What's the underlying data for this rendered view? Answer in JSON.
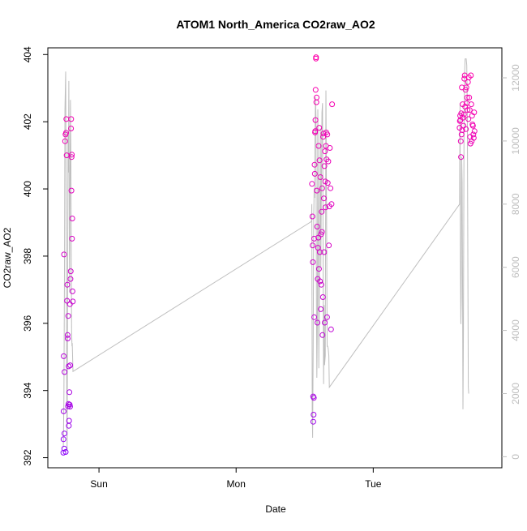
{
  "chart_data": {
    "type": "scatter",
    "title": "ATOM1 North_America CO2raw_AO2",
    "xlabel": "Date",
    "ylabel": "CO2raw_AO2",
    "x_ticks": [
      {
        "label": "Sun",
        "value": 1.0
      },
      {
        "label": "Mon",
        "value": 2.0
      },
      {
        "label": "Tue",
        "value": 3.0
      }
    ],
    "xlim": [
      0.627,
      3.938
    ],
    "y_ticks": [
      392,
      394,
      396,
      398,
      400,
      402,
      404
    ],
    "ylim": [
      391.7,
      404.2
    ],
    "y2_ticks": [
      0,
      2000,
      4000,
      6000,
      8000,
      10000,
      12000
    ],
    "y2lim": [
      -350,
      12950
    ],
    "grid": false,
    "colors": {
      "low": "#7f00ff",
      "high": "#ff00aa",
      "line": "#bebebe",
      "axis": "#000000",
      "right_axis": "#bebebe"
    },
    "series": [
      {
        "marker": "open-circle",
        "points": [
          [
            0.74,
            392.15
          ],
          [
            0.741,
            392.55
          ],
          [
            0.742,
            393.38
          ],
          [
            0.743,
            395.02
          ],
          [
            0.745,
            398.05
          ],
          [
            0.747,
            392.27
          ],
          [
            0.748,
            392.72
          ],
          [
            0.749,
            394.55
          ],
          [
            0.753,
            401.42
          ],
          [
            0.756,
            401.62
          ],
          [
            0.757,
            392.17
          ],
          [
            0.76,
            401.67
          ],
          [
            0.762,
            402.08
          ],
          [
            0.764,
            401.0
          ],
          [
            0.767,
            396.67
          ],
          [
            0.769,
            397.15
          ],
          [
            0.771,
            395.65
          ],
          [
            0.772,
            395.55
          ],
          [
            0.774,
            393.53
          ],
          [
            0.776,
            396.22
          ],
          [
            0.778,
            393.6
          ],
          [
            0.779,
            394.72
          ],
          [
            0.78,
            392.95
          ],
          [
            0.782,
            393.1
          ],
          [
            0.784,
            393.95
          ],
          [
            0.786,
            393.58
          ],
          [
            0.788,
            396.57
          ],
          [
            0.789,
            393.52
          ],
          [
            0.79,
            394.75
          ],
          [
            0.792,
            397.32
          ],
          [
            0.794,
            397.55
          ],
          [
            0.796,
            401.8
          ],
          [
            0.797,
            402.08
          ],
          [
            0.799,
            399.95
          ],
          [
            0.8,
            400.95
          ],
          [
            0.802,
            401.02
          ],
          [
            0.803,
            398.52
          ],
          [
            0.805,
            399.12
          ],
          [
            0.807,
            396.95
          ],
          [
            0.809,
            396.65
          ]
        ]
      },
      {
        "marker": "open-circle",
        "points": [
          [
            2.553,
            400.15
          ],
          [
            2.556,
            399.18
          ],
          [
            2.558,
            398.32
          ],
          [
            2.56,
            397.82
          ],
          [
            2.562,
            393.82
          ],
          [
            2.563,
            393.07
          ],
          [
            2.565,
            393.28
          ],
          [
            2.567,
            393.78
          ],
          [
            2.569,
            398.52
          ],
          [
            2.57,
            396.18
          ],
          [
            2.572,
            400.72
          ],
          [
            2.574,
            400.45
          ],
          [
            2.576,
            401.68
          ],
          [
            2.577,
            401.72
          ],
          [
            2.579,
            402.05
          ],
          [
            2.58,
            402.95
          ],
          [
            2.582,
            403.88
          ],
          [
            2.583,
            403.92
          ],
          [
            2.585,
            402.58
          ],
          [
            2.587,
            402.72
          ],
          [
            2.589,
            399.95
          ],
          [
            2.591,
            398.88
          ],
          [
            2.593,
            396.02
          ],
          [
            2.595,
            397.32
          ],
          [
            2.597,
            398.25
          ],
          [
            2.6,
            398.55
          ],
          [
            2.602,
            401.28
          ],
          [
            2.604,
            397.62
          ],
          [
            2.606,
            401.82
          ],
          [
            2.608,
            400.85
          ],
          [
            2.61,
            398.12
          ],
          [
            2.612,
            397.25
          ],
          [
            2.614,
            400.35
          ],
          [
            2.617,
            396.42
          ],
          [
            2.619,
            398.65
          ],
          [
            2.621,
            397.15
          ],
          [
            2.624,
            399.32
          ],
          [
            2.626,
            398.72
          ],
          [
            2.628,
            400.02
          ],
          [
            2.63,
            395.65
          ],
          [
            2.633,
            396.78
          ],
          [
            2.635,
            401.55
          ],
          [
            2.637,
            401.65
          ],
          [
            2.64,
            399.72
          ],
          [
            2.642,
            398.12
          ],
          [
            2.644,
            400.68
          ],
          [
            2.646,
            396.02
          ],
          [
            2.648,
            401.12
          ],
          [
            2.65,
            400.22
          ],
          [
            2.652,
            399.45
          ],
          [
            2.655,
            401.28
          ],
          [
            2.657,
            401.68
          ],
          [
            2.66,
            400.88
          ],
          [
            2.663,
            396.18
          ],
          [
            2.665,
            401.62
          ],
          [
            2.668,
            400.18
          ],
          [
            2.672,
            400.82
          ],
          [
            2.676,
            398.32
          ],
          [
            2.68,
            399.48
          ],
          [
            2.684,
            401.22
          ],
          [
            2.688,
            400.02
          ],
          [
            2.692,
            395.82
          ],
          [
            2.696,
            399.55
          ],
          [
            2.7,
            402.52
          ]
        ]
      },
      {
        "marker": "open-circle",
        "points": [
          [
            3.63,
            401.82
          ],
          [
            3.632,
            402.02
          ],
          [
            3.634,
            402.18
          ],
          [
            3.636,
            402.05
          ],
          [
            3.638,
            401.42
          ],
          [
            3.64,
            400.95
          ],
          [
            3.642,
            402.25
          ],
          [
            3.644,
            401.62
          ],
          [
            3.646,
            403.02
          ],
          [
            3.649,
            401.75
          ],
          [
            3.652,
            402.52
          ],
          [
            3.655,
            402.12
          ],
          [
            3.658,
            401.88
          ],
          [
            3.661,
            402.22
          ],
          [
            3.664,
            403.28
          ],
          [
            3.667,
            403.38
          ],
          [
            3.67,
            402.45
          ],
          [
            3.673,
            402.95
          ],
          [
            3.676,
            401.78
          ],
          [
            3.679,
            403.02
          ],
          [
            3.682,
            402.55
          ],
          [
            3.685,
            402.72
          ],
          [
            3.688,
            402.35
          ],
          [
            3.691,
            403.18
          ],
          [
            3.694,
            402.08
          ],
          [
            3.697,
            403.32
          ],
          [
            3.7,
            402.72
          ],
          [
            3.703,
            402.35
          ],
          [
            3.706,
            401.55
          ],
          [
            3.709,
            401.35
          ],
          [
            3.712,
            403.38
          ],
          [
            3.715,
            402.52
          ],
          [
            3.718,
            401.42
          ],
          [
            3.721,
            402.18
          ],
          [
            3.724,
            401.92
          ],
          [
            3.727,
            401.88
          ],
          [
            3.73,
            401.62
          ],
          [
            3.733,
            401.52
          ],
          [
            3.736,
            402.28
          ],
          [
            3.739,
            401.72
          ]
        ]
      }
    ],
    "line_series": {
      "axis": "right",
      "points": [
        [
          0.74,
          300
        ],
        [
          0.744,
          1800
        ],
        [
          0.748,
          5800
        ],
        [
          0.752,
          11000
        ],
        [
          0.757,
          12200
        ],
        [
          0.761,
          7000
        ],
        [
          0.765,
          2000
        ],
        [
          0.768,
          200
        ],
        [
          0.771,
          4800
        ],
        [
          0.774,
          10300
        ],
        [
          0.777,
          9000
        ],
        [
          0.78,
          11900
        ],
        [
          0.783,
          7500
        ],
        [
          0.786,
          5200
        ],
        [
          0.789,
          8800
        ],
        [
          0.792,
          11300
        ],
        [
          0.795,
          9600
        ],
        [
          0.798,
          6300
        ],
        [
          0.8,
          4000
        ],
        [
          0.803,
          3500
        ],
        [
          0.805,
          3600
        ],
        [
          0.81,
          2700
        ],
        [
          2.55,
          7450
        ],
        [
          2.552,
          8000
        ],
        [
          2.555,
          1500
        ],
        [
          2.558,
          600
        ],
        [
          2.562,
          3600
        ],
        [
          2.566,
          7500
        ],
        [
          2.569,
          8500
        ],
        [
          2.572,
          8200
        ],
        [
          2.575,
          10000
        ],
        [
          2.579,
          11400
        ],
        [
          2.582,
          10800
        ],
        [
          2.586,
          5000
        ],
        [
          2.589,
          2500
        ],
        [
          2.593,
          4400
        ],
        [
          2.596,
          11000
        ],
        [
          2.6,
          7700
        ],
        [
          2.603,
          2800
        ],
        [
          2.606,
          4500
        ],
        [
          2.61,
          8000
        ],
        [
          2.614,
          10400
        ],
        [
          2.618,
          6000
        ],
        [
          2.622,
          8500
        ],
        [
          2.626,
          10900
        ],
        [
          2.63,
          11200
        ],
        [
          2.634,
          6500
        ],
        [
          2.638,
          2300
        ],
        [
          2.642,
          4800
        ],
        [
          2.645,
          2900
        ],
        [
          2.65,
          3200
        ],
        [
          2.655,
          11600
        ],
        [
          2.66,
          7700
        ],
        [
          2.664,
          3500
        ],
        [
          2.668,
          3500
        ],
        [
          2.672,
          3400
        ],
        [
          2.676,
          3200
        ],
        [
          2.68,
          2200
        ],
        [
          3.63,
          8000
        ],
        [
          3.633,
          11200
        ],
        [
          3.636,
          6200
        ],
        [
          3.639,
          4200
        ],
        [
          3.642,
          5000
        ],
        [
          3.645,
          9500
        ],
        [
          3.648,
          8700
        ],
        [
          3.651,
          5500
        ],
        [
          3.654,
          1500
        ],
        [
          3.658,
          4000
        ],
        [
          3.662,
          10300
        ],
        [
          3.666,
          12100
        ],
        [
          3.67,
          12600
        ],
        [
          3.674,
          12600
        ],
        [
          3.678,
          12600
        ],
        [
          3.682,
          12400
        ],
        [
          3.686,
          11000
        ],
        [
          3.69,
          5800
        ],
        [
          3.693,
          2200
        ],
        [
          3.696,
          2000
        ]
      ]
    }
  }
}
